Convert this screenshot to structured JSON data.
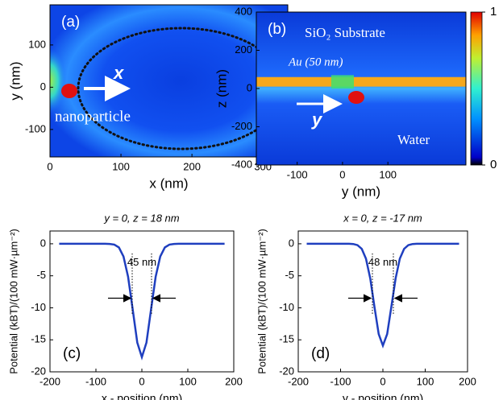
{
  "chart_data": [
    {
      "type": "heatmap",
      "panel_label": "(a)",
      "xlabel": "x (nm)",
      "ylabel": "y (nm)",
      "annotations": [
        "x",
        "nanoparticle"
      ],
      "xlim": [
        0,
        335
      ],
      "ylim": [
        -165,
        195
      ],
      "xticks": [
        0,
        100,
        200,
        300
      ],
      "yticks": [
        -100,
        0,
        100
      ]
    },
    {
      "type": "heatmap",
      "panel_label": "(b)",
      "xlabel": "y (nm)",
      "ylabel": "z (nm)",
      "annotations": [
        "SiO₂ Substrate",
        "Au (50 nm)",
        "y",
        "Water"
      ],
      "xlim": [
        -190,
        272
      ],
      "ylim": [
        -400,
        400
      ],
      "xticks": [
        -100,
        0,
        100
      ],
      "yticks": [
        -400,
        -200,
        0,
        200,
        400
      ],
      "clim": [
        0,
        1
      ],
      "cticks": [
        0,
        1
      ]
    },
    {
      "type": "line",
      "panel_label": "(c)",
      "title": "y = 0, z = 18 nm",
      "xlabel": "x - position (nm)",
      "ylabel": "Potential (kBT)/(100 mW·µm⁻²)",
      "annotations": [
        "45 nm"
      ],
      "color": "#1f3fbf",
      "xlim": [
        -200,
        200
      ],
      "ylim": [
        -20,
        2
      ],
      "xticks": [
        -200,
        -100,
        0,
        100,
        200
      ],
      "yticks": [
        -20,
        -15,
        -10,
        -5,
        0
      ],
      "x": [
        -180,
        -120,
        -80,
        -70,
        -60,
        -50,
        -40,
        -30,
        -20,
        -10,
        0,
        10,
        20,
        30,
        40,
        50,
        60,
        70,
        80,
        120,
        180
      ],
      "values": [
        0,
        0,
        0,
        -0.02,
        -0.13,
        -0.57,
        -1.98,
        -5.15,
        -10.23,
        -15.43,
        -17.7,
        -15.43,
        -10.23,
        -5.15,
        -1.98,
        -0.57,
        -0.13,
        -0.02,
        0,
        0,
        0
      ]
    },
    {
      "type": "line",
      "panel_label": "(d)",
      "title": "x = 0, z = -17 nm",
      "xlabel": "y - position (nm)",
      "ylabel": "Potential (kBT)/(100 mW·µm⁻²)",
      "annotations": [
        "48 nm"
      ],
      "color": "#1f3fbf",
      "xlim": [
        -200,
        200
      ],
      "ylim": [
        -20,
        2
      ],
      "xticks": [
        -200,
        -100,
        0,
        100,
        200
      ],
      "yticks": [
        -20,
        -15,
        -10,
        -5,
        0
      ],
      "x": [
        -180,
        -120,
        -80,
        -70,
        -60,
        -50,
        -40,
        -30,
        -20,
        -10,
        0,
        10,
        20,
        30,
        40,
        50,
        60,
        70,
        80,
        120,
        180
      ],
      "values": [
        0,
        0,
        0,
        -0.04,
        -0.21,
        -0.79,
        -2.32,
        -5.39,
        -9.83,
        -14.1,
        -15.9,
        -14.1,
        -9.83,
        -5.39,
        -2.32,
        -0.79,
        -0.21,
        -0.04,
        0,
        0,
        0
      ]
    }
  ]
}
